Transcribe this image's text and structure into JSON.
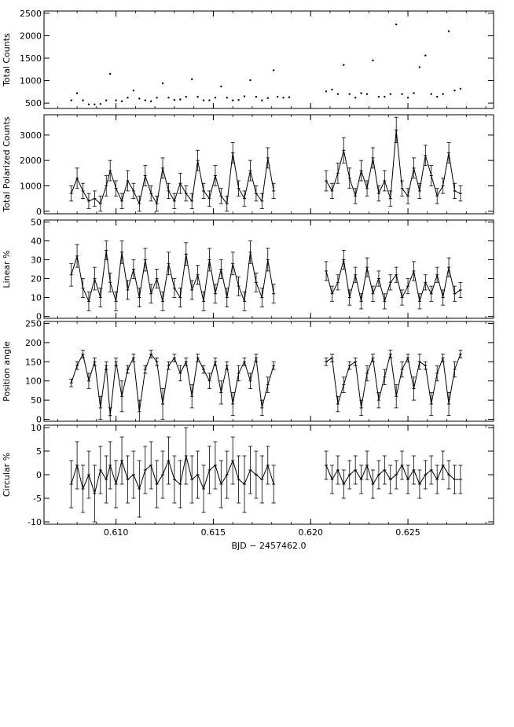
{
  "chart_data": [
    {
      "type": "scatter",
      "ylabel": "Total Counts",
      "ylim": [
        380,
        2550
      ],
      "yticks": [
        500,
        1000,
        1500,
        2000,
        2500
      ],
      "style": "dots",
      "segments": [
        {
          "x": [
            0.6077,
            0.608,
            0.6083,
            0.6086,
            0.6089,
            0.6092,
            0.6095,
            0.6097,
            0.61,
            0.6103,
            0.6106,
            0.6109,
            0.6112,
            0.6115,
            0.6118,
            0.6121,
            0.6124,
            0.6127,
            0.613,
            0.6133,
            0.6136,
            0.6139,
            0.6142,
            0.6145,
            0.6148,
            0.6151,
            0.6154,
            0.6157,
            0.616,
            0.6163,
            0.6166,
            0.6169,
            0.6172,
            0.6175,
            0.6178,
            0.6181
          ],
          "y": [
            560,
            720,
            560,
            470,
            470,
            480,
            560,
            1150,
            560,
            540,
            620,
            780,
            600,
            560,
            540,
            620,
            940,
            620,
            570,
            580,
            640,
            1030,
            640,
            560,
            560,
            620,
            870,
            620,
            560,
            570,
            650,
            1010,
            640,
            560,
            610,
            1230
          ]
        },
        {
          "x": [
            0.6183,
            0.6186,
            0.6189
          ],
          "y": [
            640,
            620,
            630
          ]
        },
        {
          "x": [
            0.6208,
            0.6211,
            0.6214,
            0.6217,
            0.622,
            0.6223,
            0.6226,
            0.6229,
            0.6232,
            0.6235,
            0.6238,
            0.6241,
            0.6244,
            0.6247,
            0.625,
            0.6253,
            0.6256,
            0.6259,
            0.6262,
            0.6265,
            0.6268,
            0.6271,
            0.6274,
            0.6277
          ],
          "y": [
            760,
            800,
            700,
            1350,
            700,
            620,
            720,
            700,
            1450,
            640,
            640,
            700,
            2250,
            700,
            620,
            720,
            1300,
            1560,
            700,
            640,
            700,
            2100,
            780,
            820
          ]
        }
      ]
    },
    {
      "type": "line",
      "ylabel": "Total Polarized Counts",
      "ylim": [
        -100,
        3800
      ],
      "yticks": [
        0,
        1000,
        2000,
        3000
      ],
      "style": "errorbars",
      "segments": [
        {
          "x": [
            0.6077,
            0.608,
            0.6083,
            0.6086,
            0.6089,
            0.6092,
            0.6095,
            0.6097,
            0.61,
            0.6103,
            0.6106,
            0.6109,
            0.6112,
            0.6115,
            0.6118,
            0.6121,
            0.6124,
            0.6127,
            0.613,
            0.6133,
            0.6136,
            0.6139,
            0.6142,
            0.6145,
            0.6148,
            0.6151,
            0.6154,
            0.6157,
            0.616,
            0.6163,
            0.6166,
            0.6169,
            0.6172,
            0.6175,
            0.6178,
            0.6181
          ],
          "y": [
            700,
            1300,
            800,
            400,
            500,
            300,
            1000,
            1600,
            900,
            400,
            1200,
            800,
            300,
            1400,
            700,
            300,
            1700,
            800,
            400,
            1100,
            700,
            400,
            2000,
            800,
            500,
            1400,
            600,
            300,
            2300,
            900,
            500,
            1600,
            700,
            400,
            2100,
            800
          ],
          "err": [
            300,
            400,
            300,
            300,
            300,
            300,
            400,
            400,
            300,
            300,
            400,
            300,
            300,
            400,
            300,
            300,
            400,
            300,
            300,
            400,
            300,
            300,
            400,
            300,
            300,
            400,
            300,
            300,
            400,
            300,
            300,
            400,
            300,
            300,
            400,
            300
          ]
        },
        {
          "x": [
            0.6208,
            0.6211,
            0.6214,
            0.6217,
            0.622,
            0.6223,
            0.6226,
            0.6229,
            0.6232,
            0.6235,
            0.6238,
            0.6241,
            0.6244,
            0.6247,
            0.625,
            0.6253,
            0.6256,
            0.6259,
            0.6262,
            0.6265,
            0.6268,
            0.6271,
            0.6274,
            0.6277
          ],
          "y": [
            1200,
            800,
            1500,
            2400,
            1300,
            600,
            1600,
            900,
            2100,
            700,
            1200,
            500,
            3200,
            900,
            600,
            1700,
            800,
            2200,
            1400,
            600,
            1000,
            2300,
            800,
            700
          ],
          "err": [
            400,
            300,
            400,
            500,
            400,
            300,
            400,
            300,
            400,
            300,
            400,
            300,
            500,
            300,
            300,
            400,
            300,
            400,
            400,
            300,
            300,
            400,
            300,
            300
          ]
        }
      ]
    },
    {
      "type": "line",
      "ylabel": "Linear %",
      "ylim": [
        -1,
        51
      ],
      "yticks": [
        0,
        10,
        20,
        30,
        40,
        50
      ],
      "style": "errorbars",
      "segments": [
        {
          "x": [
            0.6077,
            0.608,
            0.6083,
            0.6086,
            0.6089,
            0.6092,
            0.6095,
            0.6097,
            0.61,
            0.6103,
            0.6106,
            0.6109,
            0.6112,
            0.6115,
            0.6118,
            0.6121,
            0.6124,
            0.6127,
            0.613,
            0.6133,
            0.6136,
            0.6139,
            0.6142,
            0.6145,
            0.6148,
            0.6151,
            0.6154,
            0.6157,
            0.616,
            0.6163,
            0.6166,
            0.6169,
            0.6172,
            0.6175,
            0.6178,
            0.6181
          ],
          "y": [
            22,
            32,
            15,
            8,
            20,
            10,
            35,
            18,
            8,
            34,
            14,
            25,
            10,
            30,
            12,
            20,
            8,
            28,
            15,
            10,
            33,
            14,
            22,
            8,
            30,
            12,
            25,
            10,
            28,
            16,
            8,
            34,
            18,
            10,
            30,
            12
          ],
          "err": [
            6,
            6,
            5,
            5,
            6,
            5,
            5,
            5,
            5,
            6,
            5,
            5,
            5,
            6,
            5,
            5,
            5,
            6,
            5,
            5,
            6,
            5,
            5,
            5,
            6,
            5,
            5,
            5,
            6,
            5,
            5,
            6,
            5,
            5,
            6,
            5
          ]
        },
        {
          "x": [
            0.6208,
            0.6211,
            0.6214,
            0.6217,
            0.622,
            0.6223,
            0.6226,
            0.6229,
            0.6232,
            0.6235,
            0.6238,
            0.6241,
            0.6244,
            0.6247,
            0.625,
            0.6253,
            0.6256,
            0.6259,
            0.6262,
            0.6265,
            0.6268,
            0.6271,
            0.6274,
            0.6277
          ],
          "y": [
            24,
            12,
            18,
            30,
            10,
            22,
            8,
            26,
            12,
            20,
            8,
            18,
            22,
            10,
            16,
            24,
            8,
            18,
            12,
            22,
            10,
            26,
            12,
            14
          ],
          "err": [
            5,
            4,
            4,
            5,
            4,
            4,
            4,
            5,
            4,
            4,
            4,
            4,
            4,
            4,
            4,
            5,
            4,
            4,
            4,
            4,
            4,
            5,
            4,
            4
          ]
        }
      ]
    },
    {
      "type": "line",
      "ylabel": "Position angle",
      "ylim": [
        -5,
        255
      ],
      "yticks": [
        0,
        50,
        100,
        150,
        200,
        250
      ],
      "style": "errorbars",
      "segments": [
        {
          "x": [
            0.6077,
            0.608,
            0.6083,
            0.6086,
            0.6089,
            0.6092,
            0.6095,
            0.6097,
            0.61,
            0.6103,
            0.6106,
            0.6109,
            0.6112,
            0.6115,
            0.6118,
            0.6121,
            0.6124,
            0.6127,
            0.613,
            0.6133,
            0.6136,
            0.6139,
            0.6142,
            0.6145,
            0.6148,
            0.6151,
            0.6154,
            0.6157,
            0.616,
            0.6163,
            0.6166,
            0.6169,
            0.6172,
            0.6175,
            0.6178,
            0.6181
          ],
          "y": [
            95,
            140,
            170,
            100,
            150,
            30,
            140,
            10,
            150,
            60,
            130,
            160,
            20,
            130,
            170,
            150,
            40,
            140,
            160,
            120,
            150,
            60,
            160,
            130,
            100,
            150,
            70,
            140,
            40,
            120,
            150,
            100,
            160,
            30,
            90,
            140
          ],
          "err": [
            10,
            10,
            10,
            20,
            10,
            30,
            10,
            20,
            10,
            40,
            10,
            10,
            30,
            10,
            10,
            10,
            40,
            10,
            10,
            20,
            10,
            30,
            10,
            10,
            20,
            10,
            30,
            10,
            30,
            20,
            10,
            20,
            10,
            20,
            20,
            10
          ]
        },
        {
          "x": [
            0.6208,
            0.6211,
            0.6214,
            0.6217,
            0.622,
            0.6223,
            0.6226,
            0.6229,
            0.6232,
            0.6235,
            0.6238,
            0.6241,
            0.6244,
            0.6247,
            0.625,
            0.6253,
            0.6256,
            0.6259,
            0.6262,
            0.6265,
            0.6268,
            0.6271,
            0.6274,
            0.6277
          ],
          "y": [
            150,
            160,
            40,
            90,
            140,
            150,
            30,
            120,
            160,
            50,
            110,
            170,
            60,
            130,
            160,
            80,
            150,
            140,
            40,
            120,
            160,
            40,
            130,
            170
          ],
          "err": [
            10,
            10,
            20,
            20,
            10,
            10,
            20,
            20,
            10,
            20,
            20,
            10,
            30,
            20,
            10,
            30,
            20,
            10,
            30,
            20,
            10,
            30,
            20,
            10
          ]
        }
      ]
    },
    {
      "type": "line",
      "ylabel": "Circular %",
      "ylim": [
        -10.5,
        10.5
      ],
      "yticks": [
        -10,
        -5,
        0,
        5,
        10
      ],
      "style": "errorbars",
      "xlabel": "BJD − 2457462.0",
      "segments": [
        {
          "x": [
            0.6077,
            0.608,
            0.6083,
            0.6086,
            0.6089,
            0.6092,
            0.6095,
            0.6097,
            0.61,
            0.6103,
            0.6106,
            0.6109,
            0.6112,
            0.6115,
            0.6118,
            0.6121,
            0.6124,
            0.6127,
            0.613,
            0.6133,
            0.6136,
            0.6139,
            0.6142,
            0.6145,
            0.6148,
            0.6151,
            0.6154,
            0.6157,
            0.616,
            0.6163,
            0.6166,
            0.6169,
            0.6172,
            0.6175,
            0.6178,
            0.6181
          ],
          "y": [
            -2,
            2,
            -3,
            0,
            -4,
            1,
            -1,
            2,
            -2,
            3,
            -1,
            0,
            -3,
            1,
            2,
            -2,
            0,
            3,
            -1,
            -2,
            4,
            -1,
            0,
            -3,
            1,
            2,
            -2,
            0,
            3,
            -1,
            -2,
            1,
            0,
            -1,
            2,
            -2
          ],
          "err": [
            5,
            5,
            5,
            5,
            6,
            5,
            5,
            5,
            5,
            5,
            5,
            5,
            6,
            5,
            5,
            5,
            5,
            5,
            5,
            5,
            6,
            5,
            5,
            5,
            5,
            5,
            5,
            5,
            5,
            5,
            6,
            5,
            5,
            5,
            4,
            4
          ]
        },
        {
          "x": [
            0.6208,
            0.6211,
            0.6214,
            0.6217,
            0.622,
            0.6223,
            0.6226,
            0.6229,
            0.6232,
            0.6235,
            0.6238,
            0.6241,
            0.6244,
            0.6247,
            0.625,
            0.6253,
            0.6256,
            0.6259,
            0.6262,
            0.6265,
            0.6268,
            0.6271,
            0.6274,
            0.6277
          ],
          "y": [
            2,
            -1,
            1,
            -2,
            0,
            1,
            -1,
            2,
            -2,
            0,
            1,
            -1,
            0,
            2,
            -1,
            1,
            -2,
            0,
            1,
            -1,
            2,
            0,
            -1,
            -1
          ],
          "err": [
            3,
            3,
            3,
            3,
            3,
            3,
            3,
            3,
            3,
            3,
            3,
            3,
            3,
            3,
            3,
            3,
            3,
            3,
            3,
            3,
            3,
            3,
            3,
            3
          ]
        }
      ]
    }
  ],
  "x_axis": {
    "xlim": [
      0.6063,
      0.6294
    ],
    "xticks": [
      0.61,
      0.615,
      0.62,
      0.625
    ],
    "tick_labels": [
      "0.610",
      "0.615",
      "0.620",
      "0.625"
    ],
    "xlabel": "BJD − 2457462.0"
  },
  "colors": {
    "axis": "#000000",
    "data": "#000000",
    "background": "#ffffff"
  }
}
